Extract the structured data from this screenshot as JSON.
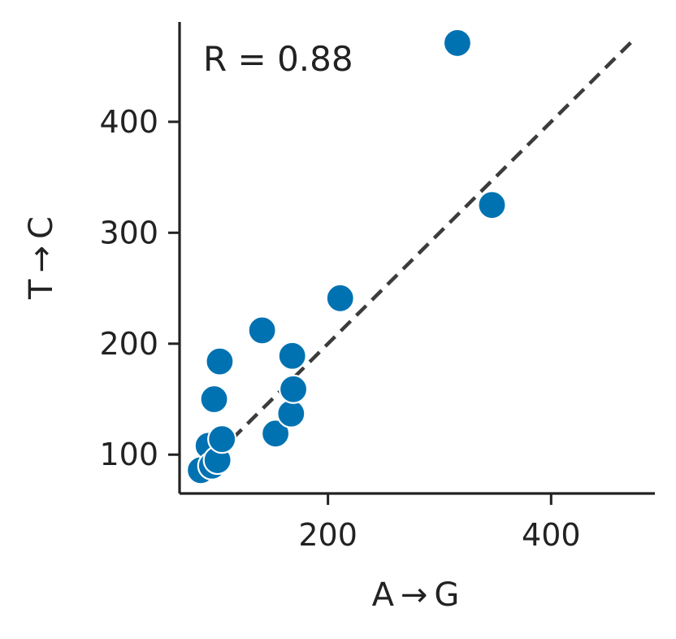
{
  "chart_data": {
    "type": "scatter",
    "title": "",
    "xlabel": "A → G",
    "ylabel": "T → C",
    "xlim": [
      67,
      493
    ],
    "ylim": [
      65,
      490
    ],
    "x_ticks": [
      200,
      400
    ],
    "y_ticks": [
      100,
      200,
      300,
      400
    ],
    "grid": false,
    "legend": "none",
    "annotation": "R = 0.88",
    "point_color": "#0072b2",
    "reference_line": {
      "style": "dashed",
      "color": "#3c3c3c",
      "from": [
        86,
        86
      ],
      "to": [
        474,
        474
      ]
    },
    "points": [
      {
        "x": 86,
        "y": 86
      },
      {
        "x": 93,
        "y": 108
      },
      {
        "x": 96,
        "y": 90
      },
      {
        "x": 98,
        "y": 150
      },
      {
        "x": 101,
        "y": 95
      },
      {
        "x": 103,
        "y": 184
      },
      {
        "x": 105,
        "y": 114
      },
      {
        "x": 141,
        "y": 212
      },
      {
        "x": 153,
        "y": 119
      },
      {
        "x": 167,
        "y": 137
      },
      {
        "x": 168,
        "y": 189
      },
      {
        "x": 169,
        "y": 159
      },
      {
        "x": 211,
        "y": 241
      },
      {
        "x": 316,
        "y": 471
      },
      {
        "x": 347,
        "y": 325
      }
    ]
  }
}
